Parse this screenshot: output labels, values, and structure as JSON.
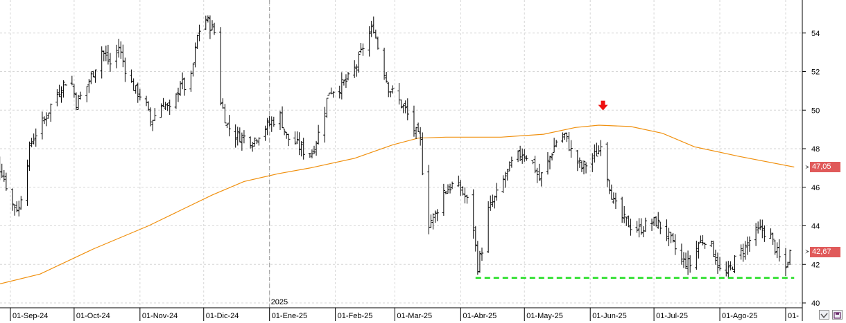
{
  "chart_data": {
    "type": "ohlc",
    "title": "",
    "xlabel": "",
    "ylabel": "",
    "ylim": [
      40,
      56
    ],
    "y_ticks": [
      40,
      42,
      44,
      46,
      48,
      50,
      52,
      54
    ],
    "y_tick_labels": [
      "40",
      "42",
      "44",
      "46",
      "48",
      "50",
      "52",
      "54"
    ],
    "x_ticks": [
      {
        "date": "2024-09-01",
        "label": "01-Sep-24"
      },
      {
        "date": "2024-10-01",
        "label": "01-Oct-24"
      },
      {
        "date": "2024-11-01",
        "label": "01-Nov-24"
      },
      {
        "date": "2024-12-01",
        "label": "01-Dic-24"
      },
      {
        "date": "2025-01-01",
        "label": "01-Ene-25"
      },
      {
        "date": "2025-02-01",
        "label": "01-Feb-25"
      },
      {
        "date": "2025-03-01",
        "label": "01-Mar-25"
      },
      {
        "date": "2025-04-01",
        "label": "01-Abr-25"
      },
      {
        "date": "2025-05-01",
        "label": "01-May-25"
      },
      {
        "date": "2025-06-01",
        "label": "01-Jun-25"
      },
      {
        "date": "2025-07-01",
        "label": "01-Jul-25"
      },
      {
        "date": "2025-08-01",
        "label": "01-Ago-25"
      },
      {
        "date": "2025-09-01",
        "label": "01-"
      }
    ],
    "year_marker": {
      "date": "2025-01-01",
      "label": "2025"
    },
    "grid": true,
    "price_path": [
      [
        "2024-08-20",
        47.8
      ],
      [
        "2024-08-24",
        47.6
      ],
      [
        "2024-08-28",
        46.8
      ],
      [
        "2024-09-02",
        45.1
      ],
      [
        "2024-09-05",
        44.9
      ],
      [
        "2024-09-08",
        46.9
      ],
      [
        "2024-09-11",
        48.4
      ],
      [
        "2024-09-14",
        49.0
      ],
      [
        "2024-09-17",
        49.5
      ],
      [
        "2024-09-21",
        50.5
      ],
      [
        "2024-09-25",
        51.2
      ],
      [
        "2024-09-29",
        51.8
      ],
      [
        "2024-10-02",
        50.4
      ],
      [
        "2024-10-06",
        51.0
      ],
      [
        "2024-10-10",
        52.0
      ],
      [
        "2024-10-14",
        53.1
      ],
      [
        "2024-10-18",
        52.4
      ],
      [
        "2024-10-22",
        53.3
      ],
      [
        "2024-10-26",
        51.8
      ],
      [
        "2024-10-30",
        51.0
      ],
      [
        "2024-11-03",
        50.6
      ],
      [
        "2024-11-06",
        49.4
      ],
      [
        "2024-11-09",
        49.9
      ],
      [
        "2024-11-12",
        50.4
      ],
      [
        "2024-11-16",
        49.8
      ],
      [
        "2024-11-20",
        51.5
      ],
      [
        "2024-11-24",
        50.9
      ],
      [
        "2024-11-28",
        53.8
      ],
      [
        "2024-12-01",
        54.9
      ],
      [
        "2024-12-04",
        54.4
      ],
      [
        "2024-12-07",
        53.9
      ],
      [
        "2024-12-09",
        50.5
      ],
      [
        "2024-12-12",
        49.2
      ],
      [
        "2024-12-16",
        48.7
      ],
      [
        "2024-12-20",
        48.6
      ],
      [
        "2024-12-24",
        48.4
      ],
      [
        "2024-12-28",
        48.9
      ],
      [
        "2025-01-02",
        49.4
      ],
      [
        "2025-01-06",
        49.7
      ],
      [
        "2025-01-09",
        48.6
      ],
      [
        "2025-01-13",
        48.3
      ],
      [
        "2025-01-17",
        47.9
      ],
      [
        "2025-01-21",
        47.8
      ],
      [
        "2025-01-25",
        49.1
      ],
      [
        "2025-01-29",
        51.0
      ],
      [
        "2025-02-03",
        51.2
      ],
      [
        "2025-02-07",
        51.6
      ],
      [
        "2025-02-11",
        52.3
      ],
      [
        "2025-02-15",
        53.6
      ],
      [
        "2025-02-19",
        54.3
      ],
      [
        "2025-02-22",
        52.8
      ],
      [
        "2025-02-26",
        51.2
      ],
      [
        "2025-03-02",
        50.6
      ],
      [
        "2025-03-06",
        50.0
      ],
      [
        "2025-03-10",
        49.0
      ],
      [
        "2025-03-13",
        48.4
      ],
      [
        "2025-03-16",
        44.0
      ],
      [
        "2025-03-20",
        44.6
      ],
      [
        "2025-03-24",
        45.8
      ],
      [
        "2025-03-28",
        46.1
      ],
      [
        "2025-04-01",
        45.9
      ],
      [
        "2025-04-04",
        45.3
      ],
      [
        "2025-04-07",
        43.9
      ],
      [
        "2025-04-09",
        41.9
      ],
      [
        "2025-04-11",
        42.8
      ],
      [
        "2025-04-14",
        44.8
      ],
      [
        "2025-04-18",
        45.6
      ],
      [
        "2025-04-22",
        46.6
      ],
      [
        "2025-04-26",
        47.4
      ],
      [
        "2025-04-30",
        47.8
      ],
      [
        "2025-05-04",
        47.5
      ],
      [
        "2025-05-08",
        46.4
      ],
      [
        "2025-05-12",
        47.3
      ],
      [
        "2025-05-16",
        48.4
      ],
      [
        "2025-05-20",
        48.7
      ],
      [
        "2025-05-24",
        47.6
      ],
      [
        "2025-05-28",
        47.0
      ],
      [
        "2025-06-01",
        47.4
      ],
      [
        "2025-06-05",
        47.9
      ],
      [
        "2025-06-07",
        48.9
      ],
      [
        "2025-06-09",
        46.6
      ],
      [
        "2025-06-12",
        45.2
      ],
      [
        "2025-06-16",
        44.4
      ],
      [
        "2025-06-20",
        44.0
      ],
      [
        "2025-06-24",
        43.8
      ],
      [
        "2025-06-28",
        44.1
      ],
      [
        "2025-07-02",
        44.2
      ],
      [
        "2025-07-06",
        43.8
      ],
      [
        "2025-07-10",
        43.0
      ],
      [
        "2025-07-14",
        42.2
      ],
      [
        "2025-07-18",
        42.0
      ],
      [
        "2025-07-22",
        43.1
      ],
      [
        "2025-07-26",
        43.4
      ],
      [
        "2025-07-30",
        42.4
      ],
      [
        "2025-08-02",
        41.3
      ],
      [
        "2025-08-05",
        41.6
      ],
      [
        "2025-08-09",
        42.4
      ],
      [
        "2025-08-13",
        42.9
      ],
      [
        "2025-08-17",
        43.6
      ],
      [
        "2025-08-21",
        43.8
      ],
      [
        "2025-08-25",
        43.4
      ],
      [
        "2025-08-29",
        42.3
      ],
      [
        "2025-09-01",
        41.8
      ],
      [
        "2025-09-03",
        42.6
      ]
    ],
    "moving_average": {
      "color": "#f0900e",
      "points": [
        [
          "2024-08-20",
          40.8
        ],
        [
          "2024-09-15",
          41.5
        ],
        [
          "2024-10-10",
          42.8
        ],
        [
          "2024-11-05",
          44.0
        ],
        [
          "2024-12-05",
          45.6
        ],
        [
          "2024-12-20",
          46.3
        ],
        [
          "2025-01-05",
          46.7
        ],
        [
          "2025-01-20",
          47.0
        ],
        [
          "2025-02-10",
          47.5
        ],
        [
          "2025-02-28",
          48.2
        ],
        [
          "2025-03-12",
          48.55
        ],
        [
          "2025-03-25",
          48.6
        ],
        [
          "2025-04-20",
          48.6
        ],
        [
          "2025-05-10",
          48.75
        ],
        [
          "2025-05-25",
          49.1
        ],
        [
          "2025-06-05",
          49.22
        ],
        [
          "2025-06-20",
          49.15
        ],
        [
          "2025-07-05",
          48.8
        ],
        [
          "2025-07-20",
          48.1
        ],
        [
          "2025-08-10",
          47.6
        ],
        [
          "2025-09-05",
          47.05
        ]
      ]
    },
    "support_line": {
      "start": "2025-04-08",
      "end": "2025-09-05",
      "value": 41.3,
      "color": "#22dd22"
    },
    "marker": {
      "date": "2025-06-07",
      "value": 50.2,
      "color": "#ee1111"
    },
    "price_labels": [
      {
        "text": "47,05",
        "value": 47.05,
        "color": "#e05a5a"
      },
      {
        "text": "42,67",
        "value": 42.67,
        "color": "#e05a5a"
      }
    ]
  }
}
